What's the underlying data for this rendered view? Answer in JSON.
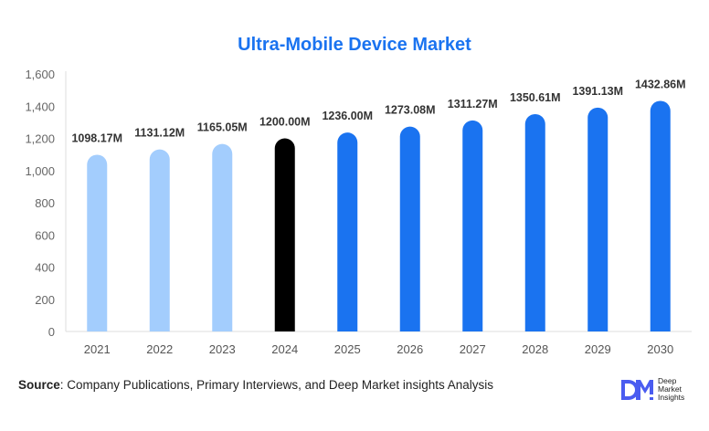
{
  "chart_data": {
    "type": "bar",
    "title": "Ultra-Mobile Device Market",
    "categories": [
      "2021",
      "2022",
      "2023",
      "2024",
      "2025",
      "2026",
      "2027",
      "2028",
      "2029",
      "2030"
    ],
    "values": [
      1098.17,
      1131.12,
      1165.05,
      1200.0,
      1236.0,
      1273.08,
      1311.27,
      1350.61,
      1391.13,
      1432.86
    ],
    "data_labels": [
      "1098.17M",
      "1131.12M",
      "1165.05M",
      "1200.00M",
      "1236.00M",
      "1273.08M",
      "1311.27M",
      "1350.61M",
      "1391.13M",
      "1432.86M"
    ],
    "bar_colors": [
      "#a3cdfd",
      "#a3cdfd",
      "#a3cdfd",
      "#000000",
      "#1a73f0",
      "#1a73f0",
      "#1a73f0",
      "#1a73f0",
      "#1a73f0",
      "#1a73f0"
    ],
    "yticks": [
      "0",
      "200",
      "400",
      "600",
      "800",
      "1,000",
      "1,200",
      "1,400",
      "1,600"
    ],
    "ylim": [
      0,
      1600
    ],
    "xlabel": "",
    "ylabel": "",
    "grid": false
  },
  "source": {
    "label": "Source",
    "text": ": Company Publications, Primary Interviews, and Deep Market insights Analysis"
  },
  "logo": {
    "mark": "DM",
    "line1": "Deep",
    "line2": "Market",
    "line3": "Insights",
    "color": "#4a5cf0"
  }
}
